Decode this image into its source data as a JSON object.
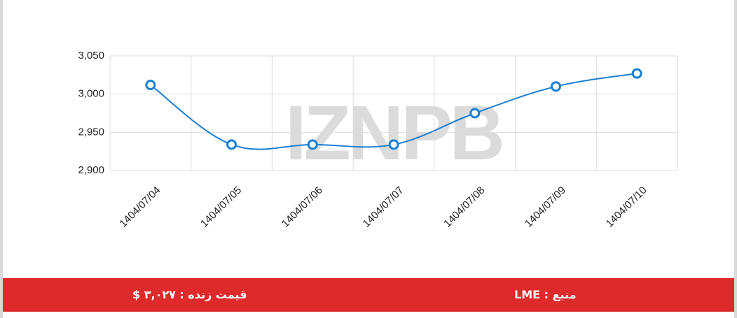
{
  "chart_data": {
    "type": "line",
    "watermark": "IZNPB",
    "categories": [
      "1404/07/04",
      "1404/07/05",
      "1404/07/06",
      "1404/07/07",
      "1404/07/08",
      "1404/07/09",
      "1404/07/10"
    ],
    "values": [
      3012,
      2934,
      2934,
      2934,
      2975,
      3010,
      3027
    ],
    "color": "#1a7fd4",
    "ylim": [
      2900,
      3050
    ],
    "yticks": [
      {
        "value": 2900,
        "label": "2,900"
      },
      {
        "value": 2950,
        "label": "2,950"
      },
      {
        "value": 3000,
        "label": "3,000"
      },
      {
        "value": 3050,
        "label": "3,050"
      }
    ],
    "grid": true
  },
  "footer": {
    "price": "قیمت زنده : ۳,۰۲۷ $",
    "source": "منبع : LME"
  }
}
